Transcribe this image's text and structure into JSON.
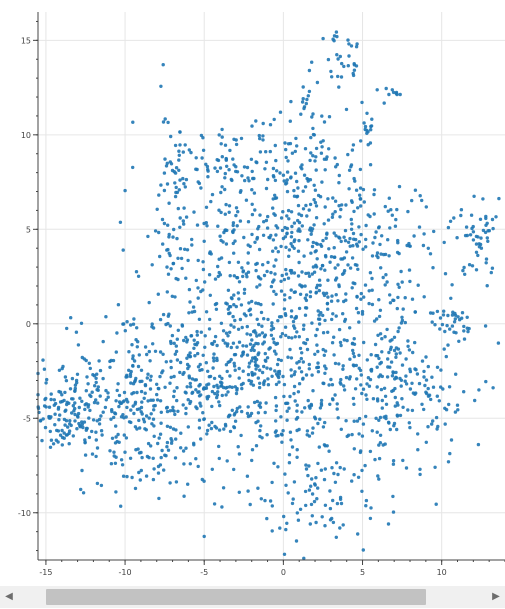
{
  "chart_data": {
    "type": "scatter",
    "title": "",
    "xlabel": "",
    "ylabel": "",
    "xlim": [
      -15.5,
      14
    ],
    "ylim": [
      -12.5,
      16.5
    ],
    "xticks": [
      -15,
      -10,
      -5,
      0,
      5,
      10
    ],
    "yticks": [
      -10,
      -5,
      0,
      5,
      10,
      15
    ],
    "grid": true,
    "marker_color": "#1f77b4",
    "clusters": [
      {
        "cx": -12.5,
        "cy": -4.5,
        "sx": 2.3,
        "sy": 1.3,
        "n": 230
      },
      {
        "cx": -7.5,
        "cy": -3.5,
        "sx": 2.8,
        "sy": 2.2,
        "n": 260
      },
      {
        "cx": -2.5,
        "cy": -1.5,
        "sx": 3.2,
        "sy": 3.4,
        "n": 330
      },
      {
        "cx": 2.5,
        "cy": -2.0,
        "sx": 3.3,
        "sy": 3.6,
        "n": 330
      },
      {
        "cx": 7.5,
        "cy": -3.5,
        "sx": 2.4,
        "sy": 2.0,
        "n": 170
      },
      {
        "cx": -1.0,
        "cy": 4.0,
        "sx": 3.3,
        "sy": 2.6,
        "n": 220
      },
      {
        "cx": 4.5,
        "cy": 4.0,
        "sx": 3.2,
        "sy": 2.0,
        "n": 180
      },
      {
        "cx": -7.0,
        "cy": 6.5,
        "sx": 0.5,
        "sy": 2.3,
        "n": 70
      },
      {
        "cx": -3.0,
        "cy": 8.5,
        "sx": 2.2,
        "sy": 1.5,
        "n": 90
      },
      {
        "cx": 2.0,
        "cy": 8.0,
        "sx": 2.0,
        "sy": 1.6,
        "n": 80
      },
      {
        "cx": 12.5,
        "cy": 4.5,
        "sx": 0.8,
        "sy": 1.1,
        "n": 50
      },
      {
        "cx": 10.8,
        "cy": 0.0,
        "sx": 0.7,
        "sy": 0.4,
        "n": 30
      },
      {
        "cx": 3.5,
        "cy": 14.0,
        "sx": 0.7,
        "sy": 0.8,
        "n": 30
      },
      {
        "cx": 1.5,
        "cy": 11.5,
        "sx": 0.7,
        "sy": 0.8,
        "n": 20
      },
      {
        "cx": 5.3,
        "cy": 10.3,
        "sx": 0.3,
        "sy": 0.6,
        "n": 15
      },
      {
        "cx": 7.0,
        "cy": 12.3,
        "sx": 0.4,
        "sy": 0.2,
        "n": 10
      },
      {
        "cx": 2.5,
        "cy": -9.5,
        "sx": 2.0,
        "sy": 1.2,
        "n": 70
      },
      {
        "cx": -8.5,
        "cy": -7.5,
        "sx": 2.0,
        "sy": 0.8,
        "n": 40
      }
    ]
  },
  "scrollbar": {
    "left_arrow_icon": "chevron-left-icon",
    "right_arrow_icon": "chevron-right-icon",
    "thumb_fraction_start": 0.06,
    "thumb_fraction_end": 0.87
  }
}
